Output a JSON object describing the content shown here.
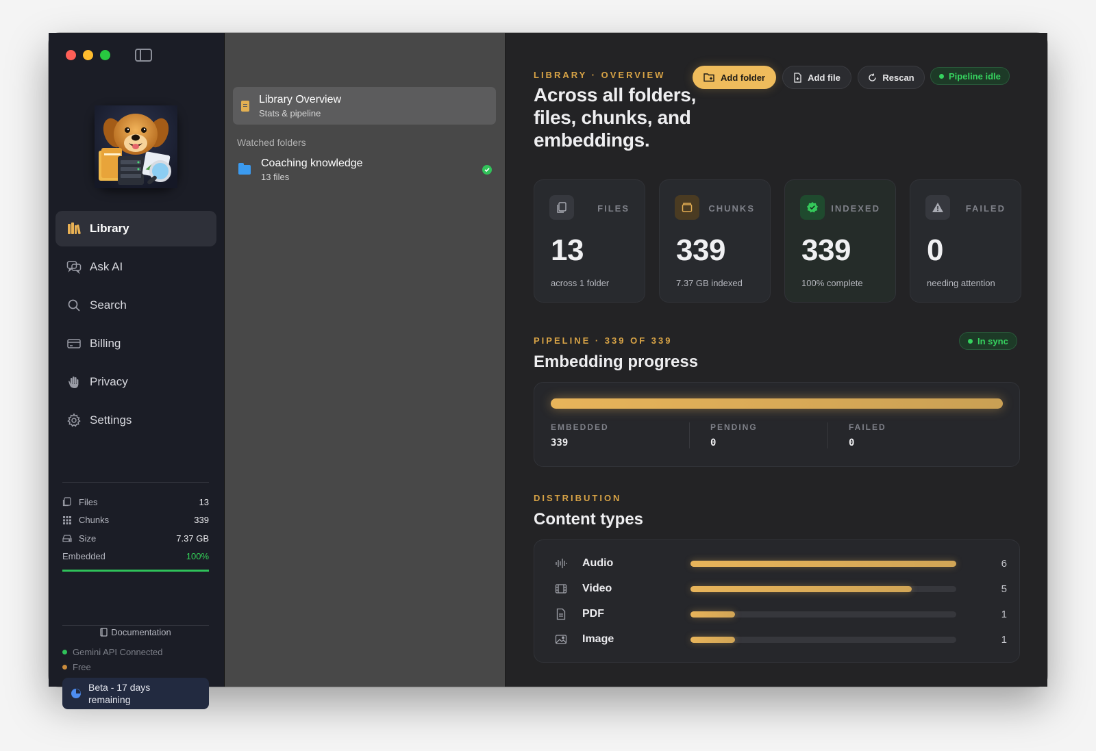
{
  "sidebar": {
    "nav": [
      {
        "label": "Library",
        "icon": "books-icon",
        "active": true
      },
      {
        "label": "Ask AI",
        "icon": "chat-bubbles-icon",
        "active": false
      },
      {
        "label": "Search",
        "icon": "search-icon",
        "active": false
      },
      {
        "label": "Billing",
        "icon": "credit-card-icon",
        "active": false
      },
      {
        "label": "Privacy",
        "icon": "hand-icon",
        "active": false
      },
      {
        "label": "Settings",
        "icon": "gear-icon",
        "active": false
      }
    ],
    "stats": {
      "files_label": "Files",
      "files_value": "13",
      "chunks_label": "Chunks",
      "chunks_value": "339",
      "size_label": "Size",
      "size_value": "7.37 GB",
      "embedded_label": "Embedded",
      "embedded_value": "100%",
      "embedded_fraction": 1.0
    },
    "documentation": "Documentation",
    "api_status": "Gemini API Connected",
    "plan": "Free",
    "beta": "Beta - 17 days remaining"
  },
  "middle": {
    "overview_title": "Library Overview",
    "overview_sub": "Stats & pipeline",
    "section": "Watched folders",
    "folders": [
      {
        "name": "Coaching knowledge",
        "sub": "13 files",
        "status": "synced"
      }
    ]
  },
  "main": {
    "eyebrow": "LIBRARY · OVERVIEW",
    "headline": "Across all folders, files, chunks, and embeddings.",
    "buttons": {
      "add_folder": "Add folder",
      "add_file": "Add file",
      "rescan": "Rescan"
    },
    "pipeline_status": "Pipeline idle",
    "cards": [
      {
        "label": "FILES",
        "value": "13",
        "sub": "across 1 folder",
        "icon": "files-icon"
      },
      {
        "label": "CHUNKS",
        "value": "339",
        "sub": "7.37 GB indexed",
        "icon": "box-icon"
      },
      {
        "label": "INDEXED",
        "value": "339",
        "sub": "100% complete",
        "icon": "verified-badge-icon"
      },
      {
        "label": "FAILED",
        "value": "0",
        "sub": "needing attention",
        "icon": "warning-icon"
      }
    ],
    "pipeline": {
      "eyebrow": "PIPELINE · 339 OF 339",
      "title": "Embedding progress",
      "sync_status": "In sync",
      "progress_fraction": 1.0,
      "stats": [
        {
          "label": "EMBEDDED",
          "value": "339"
        },
        {
          "label": "PENDING",
          "value": "0"
        },
        {
          "label": "FAILED",
          "value": "0"
        }
      ]
    },
    "distribution": {
      "eyebrow": "DISTRIBUTION",
      "title": "Content types",
      "types": [
        {
          "name": "Audio",
          "count": "6",
          "fraction": 1.0,
          "icon": "waveform-icon"
        },
        {
          "name": "Video",
          "count": "5",
          "fraction": 0.833,
          "icon": "film-icon"
        },
        {
          "name": "PDF",
          "count": "1",
          "fraction": 0.167,
          "icon": "document-icon"
        },
        {
          "name": "Image",
          "count": "1",
          "fraction": 0.167,
          "icon": "image-icon"
        }
      ]
    }
  },
  "colors": {
    "accent": "#efbc5c",
    "success": "#34d058",
    "sidebar_bg": "#1b1d26",
    "middle_bg": "#484848",
    "main_bg": "#232325"
  }
}
